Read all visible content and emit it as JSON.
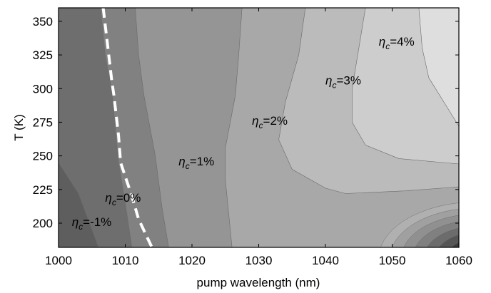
{
  "chart_data": {
    "type": "contour",
    "xlabel": "pump wavelength (nm)",
    "ylabel": "T (K)",
    "xlim": [
      1000,
      1060
    ],
    "ylim": [
      182,
      360
    ],
    "xticks": [
      1000,
      1010,
      1020,
      1030,
      1040,
      1050,
      1060
    ],
    "yticks": [
      200,
      225,
      250,
      275,
      300,
      325,
      350
    ],
    "grid": false,
    "colormap": "grayscale (dark = low, light = high)",
    "levels": [
      {
        "value": -2,
        "color": "#5e5e5e"
      },
      {
        "value": -1,
        "color": "#6e6e6e"
      },
      {
        "value": 0,
        "color": "#818181"
      },
      {
        "value": 1,
        "color": "#959595"
      },
      {
        "value": 2,
        "color": "#a8a8a8"
      },
      {
        "value": 3,
        "color": "#bbbbbb"
      },
      {
        "value": 4,
        "color": "#cdcdcd"
      },
      {
        "value": 5,
        "color": "#dedede"
      }
    ],
    "corner_dark_colors": [
      "#b0b0b0",
      "#a0a0a0",
      "#909090",
      "#808080",
      "#6c6c6c",
      "#555555",
      "#3a3a3a",
      "#000000"
    ],
    "contours": [
      {
        "level": -2,
        "points": [
          [
            1000,
            245
          ],
          [
            1003,
            222
          ],
          [
            1006,
            182
          ]
        ]
      },
      {
        "level": -1,
        "points": [
          [
            1006.3,
            360
          ],
          [
            1007,
            325
          ],
          [
            1008,
            298
          ],
          [
            1009,
            245
          ],
          [
            1010,
            215
          ],
          [
            1011,
            182
          ]
        ]
      },
      {
        "level": 0,
        "points": [
          [
            1011.5,
            360
          ],
          [
            1012,
            325
          ],
          [
            1012.8,
            295
          ],
          [
            1014.5,
            250
          ],
          [
            1015.5,
            212
          ],
          [
            1016.5,
            182
          ]
        ]
      },
      {
        "level": 1,
        "points": [
          [
            1027.5,
            360
          ],
          [
            1027,
            325
          ],
          [
            1026.5,
            295
          ],
          [
            1025,
            256
          ],
          [
            1025,
            232
          ],
          [
            1026,
            182
          ]
        ]
      },
      {
        "level": 2,
        "points": [
          [
            1037,
            360
          ],
          [
            1036,
            325
          ],
          [
            1034,
            290
          ],
          [
            1033,
            262
          ],
          [
            1035,
            240
          ],
          [
            1040,
            226
          ],
          [
            1043,
            222
          ],
          [
            1052,
            224
          ],
          [
            1060,
            227
          ]
        ]
      },
      {
        "level": 3,
        "points": [
          [
            1046,
            360
          ],
          [
            1045,
            330
          ],
          [
            1044,
            300
          ],
          [
            1044,
            275
          ],
          [
            1046,
            258
          ],
          [
            1051,
            248
          ],
          [
            1060,
            244
          ]
        ]
      },
      {
        "level": 4,
        "points": [
          [
            1054,
            360
          ],
          [
            1054.5,
            330
          ],
          [
            1055.5,
            308
          ],
          [
            1056.5,
            300
          ],
          [
            1060,
            272
          ]
        ]
      }
    ],
    "boundary_line": {
      "style": "dashed",
      "color": "#ffffff",
      "points": [
        [
          1006.7,
          360
        ],
        [
          1008,
          305
        ],
        [
          1008.3,
          295
        ],
        [
          1009,
          265
        ],
        [
          1009.3,
          245
        ],
        [
          1011,
          220
        ],
        [
          1012,
          203
        ],
        [
          1014,
          182
        ]
      ]
    },
    "annotations": [
      {
        "sym": "η",
        "sub": "c",
        "text": "=4%",
        "x": 1048,
        "y": 332
      },
      {
        "sym": "η",
        "sub": "c",
        "text": "=3%",
        "x": 1040,
        "y": 303
      },
      {
        "sym": "η",
        "sub": "c",
        "text": "=2%",
        "x": 1029,
        "y": 273
      },
      {
        "sym": "η",
        "sub": "c",
        "text": "=1%",
        "x": 1018,
        "y": 243
      },
      {
        "sym": "η",
        "sub": "c",
        "text": "=0%",
        "x": 1007,
        "y": 216
      },
      {
        "sym": "η",
        "sub": "c",
        "text": "=-1%",
        "x": 1002,
        "y": 198
      }
    ]
  }
}
